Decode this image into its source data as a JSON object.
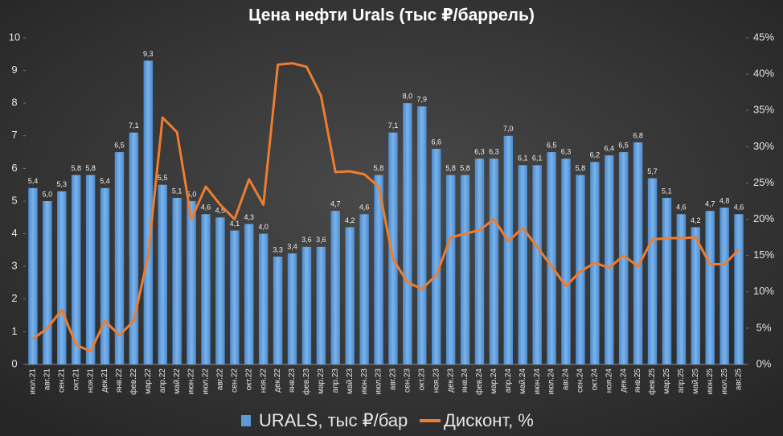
{
  "chart_data": {
    "type": "bar-line",
    "title": "Цена нефти Urals (тыс ₽/баррель)",
    "categories": [
      "июл.21",
      "авг.21",
      "сен.21",
      "окт.21",
      "ноя.21",
      "дек.21",
      "янв.22",
      "фев.22",
      "мар.22",
      "апр.22",
      "май.22",
      "июн.22",
      "июл.22",
      "авг.22",
      "сен.22",
      "окт.22",
      "ноя.22",
      "дек.22",
      "янв.23",
      "фев.23",
      "мар.23",
      "апр.23",
      "май.23",
      "июн.23",
      "июл.23",
      "авг.23",
      "сен.23",
      "окт.23",
      "ноя.23",
      "дек.23",
      "янв.24",
      "фев.24",
      "мар.24",
      "апр.24",
      "май.24",
      "июн.24",
      "июл.24",
      "авг.24",
      "сен.24",
      "окт.24",
      "ноя.24",
      "дек.24",
      "янв.25",
      "фев.25",
      "мар.25",
      "апр.25",
      "май.25",
      "июн.25",
      "июл.25",
      "авг.25"
    ],
    "series": [
      {
        "name": "URALS, тыс ₽/бар",
        "type": "bar",
        "color": "#5b9bd5",
        "values": [
          5.4,
          5.0,
          5.3,
          5.8,
          5.8,
          5.4,
          6.5,
          7.1,
          9.3,
          5.5,
          5.1,
          5.0,
          4.6,
          4.5,
          4.1,
          4.3,
          4.0,
          3.3,
          3.4,
          3.6,
          3.6,
          4.7,
          4.2,
          4.6,
          5.8,
          7.1,
          8.0,
          7.9,
          6.6,
          5.8,
          5.8,
          6.3,
          6.3,
          7.0,
          6.1,
          6.1,
          6.5,
          6.3,
          5.8,
          6.2,
          6.4,
          6.5,
          6.8,
          5.7,
          5.1,
          4.6,
          4.2,
          4.7,
          4.8,
          4.6
        ],
        "value_labels": [
          "5,4",
          "5,0",
          "5,3",
          "5,8",
          "5,8",
          "5,4",
          "6,5",
          "7,1",
          "9,3",
          "5,5",
          "5,1",
          "5,0",
          "4,6",
          "4,5",
          "4,1",
          "4,3",
          "4,0",
          "3,3",
          "3,4",
          "3,6",
          "3,6",
          "4,7",
          "4,2",
          "4,6",
          "5,8",
          "7,1",
          "8,0",
          "7,9",
          "6,6",
          "5,8",
          "5,8",
          "6,3",
          "6,3",
          "7,0",
          "6,1",
          "6,1",
          "6,5",
          "6,3",
          "5,8",
          "6,2",
          "6,4",
          "6,5",
          "6,8",
          "5,7",
          "5,1",
          "4,6",
          "4,2",
          "4,7",
          "4,8",
          "4,6"
        ]
      },
      {
        "name": "Дисконт, %",
        "type": "line",
        "color": "#ed7d31",
        "axis": "y2",
        "values": [
          3.5,
          5,
          7.5,
          2.7,
          1.8,
          6,
          4,
          6,
          15,
          34,
          32,
          20,
          24.5,
          22,
          20,
          25.5,
          22,
          41.3,
          41.5,
          41,
          37,
          26.5,
          26.6,
          26.2,
          24.5,
          14.5,
          11.3,
          10.4,
          12.3,
          17.5,
          18,
          18.5,
          20,
          17,
          18.8,
          16.2,
          13.5,
          10.8,
          12.8,
          14,
          13.3,
          15,
          13.5,
          17.2,
          17.4,
          17.4,
          17.5,
          13.8,
          13.8,
          15.8
        ]
      }
    ],
    "ylim": [
      0,
      10
    ],
    "yticks": [
      0,
      1,
      2,
      3,
      4,
      5,
      6,
      7,
      8,
      9,
      10
    ],
    "y2lim": [
      0,
      45
    ],
    "y2ticks": [
      {
        "value": 0,
        "label": "0%"
      },
      {
        "value": 5,
        "label": "5%"
      },
      {
        "value": 10,
        "label": "10%"
      },
      {
        "value": 15,
        "label": "15%"
      },
      {
        "value": 20,
        "label": "20%"
      },
      {
        "value": 25,
        "label": "25%"
      },
      {
        "value": 30,
        "label": "30%"
      },
      {
        "value": 35,
        "label": "35%"
      },
      {
        "value": 40,
        "label": "40%"
      },
      {
        "value": 45,
        "label": "45%"
      }
    ],
    "legend": "bottom"
  }
}
